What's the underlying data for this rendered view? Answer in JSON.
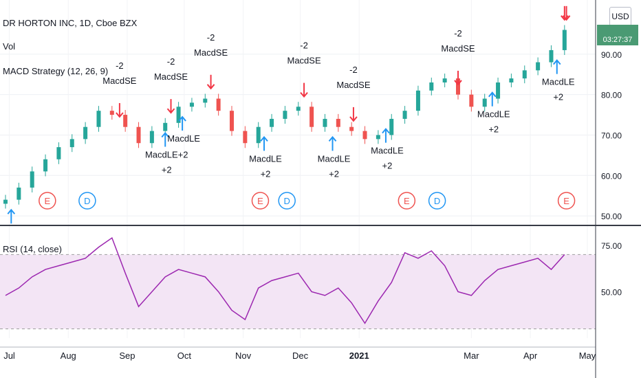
{
  "header": {
    "title": "DR HORTON INC, 1D, Cboe BZX",
    "vol_label": "Vol",
    "strategy_label": "MACD Strategy (12, 26, 9)",
    "rsi_label": "RSI (14, close)",
    "currency": "USD",
    "countdown": "03:27:37"
  },
  "colors": {
    "up": "#26a69a",
    "down": "#ef5350",
    "long_arrow": "#2196f3",
    "short_arrow": "#f23645",
    "rsi_line": "#9c27b0",
    "rsi_band": "#f3e5f5",
    "price_tag": "#4a9a73"
  },
  "chart_data": [
    {
      "type": "candlestick",
      "title": "DR HORTON INC, 1D, Cboe BZX",
      "y_ticks": [
        "50.00",
        "60.00",
        "70.00",
        "80.00",
        "90.00"
      ],
      "ylim": [
        49,
        100
      ],
      "x_ticks": [
        "Jul",
        "Aug",
        "Sep",
        "Oct",
        "Nov",
        "Dec",
        "2021",
        "Mar",
        "Apr",
        "May"
      ],
      "x": [
        "2020-06-29",
        "2020-07-06",
        "2020-07-13",
        "2020-07-20",
        "2020-07-27",
        "2020-08-03",
        "2020-08-10",
        "2020-08-17",
        "2020-08-24",
        "2020-08-31",
        "2020-09-07",
        "2020-09-14",
        "2020-09-21",
        "2020-09-28",
        "2020-10-05",
        "2020-10-12",
        "2020-10-19",
        "2020-10-26",
        "2020-11-02",
        "2020-11-09",
        "2020-11-16",
        "2020-11-23",
        "2020-11-30",
        "2020-12-07",
        "2020-12-14",
        "2020-12-21",
        "2020-12-28",
        "2021-01-04",
        "2021-01-11",
        "2021-01-18",
        "2021-01-25",
        "2021-02-01",
        "2021-02-08",
        "2021-02-15",
        "2021-02-22",
        "2021-03-01",
        "2021-03-08",
        "2021-03-15",
        "2021-03-22",
        "2021-03-29",
        "2021-04-05",
        "2021-04-12",
        "2021-04-19"
      ],
      "close": [
        54,
        57,
        61,
        64,
        67,
        69,
        72,
        76,
        75,
        72,
        68,
        71,
        73,
        77,
        78,
        79,
        76,
        71,
        68,
        72,
        74,
        76,
        77,
        72,
        74,
        72,
        71,
        69,
        70,
        74,
        76,
        81,
        83,
        84,
        80,
        77,
        79,
        83,
        84,
        86,
        88,
        91,
        96
      ],
      "signals": [
        {
          "type": "long",
          "date": "2020-07-02",
          "label": ""
        },
        {
          "type": "short",
          "date": "2020-08-28",
          "label": "-2\nMacdSE"
        },
        {
          "type": "long",
          "date": "2020-09-21",
          "label": "MacdLE+2\n+2"
        },
        {
          "type": "short",
          "date": "2020-09-24",
          "label": "-2\nMacdSE"
        },
        {
          "type": "long",
          "date": "2020-09-30",
          "label": "MacdLE"
        },
        {
          "type": "short",
          "date": "2020-10-15",
          "label": "-2\nMacdSE"
        },
        {
          "type": "long",
          "date": "2020-11-12",
          "label": "MacdLE\n+2"
        },
        {
          "type": "short",
          "date": "2020-12-03",
          "label": "-2\nMacdSE"
        },
        {
          "type": "long",
          "date": "2020-12-18",
          "label": "MacdLE\n+2"
        },
        {
          "type": "short",
          "date": "2020-12-29",
          "label": "-2\nMacdSE"
        },
        {
          "type": "long",
          "date": "2021-01-15",
          "label": "MacdLE\n+2"
        },
        {
          "type": "short",
          "date": "2021-02-22",
          "label": "-2\nMacdSE"
        },
        {
          "type": "long",
          "date": "2021-03-12",
          "label": "MacdLE\n+2"
        },
        {
          "type": "long",
          "date": "2021-04-15",
          "label": "MacdLE\n+2"
        },
        {
          "type": "short",
          "date": "2021-04-20",
          "label": ""
        },
        {
          "type": "short",
          "date": "2021-04-19",
          "label": ""
        }
      ],
      "events": [
        {
          "type": "E",
          "date": "2020-07-21"
        },
        {
          "type": "D",
          "date": "2020-08-11"
        },
        {
          "type": "E",
          "date": "2020-11-10"
        },
        {
          "type": "D",
          "date": "2020-11-24"
        },
        {
          "type": "E",
          "date": "2021-01-26"
        },
        {
          "type": "D",
          "date": "2021-02-11"
        },
        {
          "type": "E",
          "date": "2021-04-20"
        }
      ]
    },
    {
      "type": "line",
      "title": "RSI (14, close)",
      "y_ticks": [
        "50.00",
        "75.00"
      ],
      "ylim": [
        25,
        82
      ],
      "bands": [
        30,
        70
      ],
      "x": [
        "2020-06-29",
        "2020-07-06",
        "2020-07-13",
        "2020-07-20",
        "2020-07-27",
        "2020-08-03",
        "2020-08-10",
        "2020-08-17",
        "2020-08-24",
        "2020-08-31",
        "2020-09-07",
        "2020-09-14",
        "2020-09-21",
        "2020-09-28",
        "2020-10-05",
        "2020-10-12",
        "2020-10-19",
        "2020-10-26",
        "2020-11-02",
        "2020-11-09",
        "2020-11-16",
        "2020-11-23",
        "2020-11-30",
        "2020-12-07",
        "2020-12-14",
        "2020-12-21",
        "2020-12-28",
        "2021-01-04",
        "2021-01-11",
        "2021-01-18",
        "2021-01-25",
        "2021-02-01",
        "2021-02-08",
        "2021-02-15",
        "2021-02-22",
        "2021-03-01",
        "2021-03-08",
        "2021-03-15",
        "2021-03-22",
        "2021-03-29",
        "2021-04-05",
        "2021-04-12",
        "2021-04-19"
      ],
      "values": [
        48,
        52,
        58,
        62,
        64,
        66,
        68,
        74,
        79,
        60,
        42,
        50,
        58,
        62,
        60,
        58,
        50,
        40,
        35,
        52,
        56,
        58,
        60,
        50,
        48,
        52,
        44,
        33,
        45,
        55,
        71,
        68,
        72,
        64,
        50,
        48,
        56,
        62,
        64,
        66,
        68,
        62,
        70
      ]
    }
  ]
}
